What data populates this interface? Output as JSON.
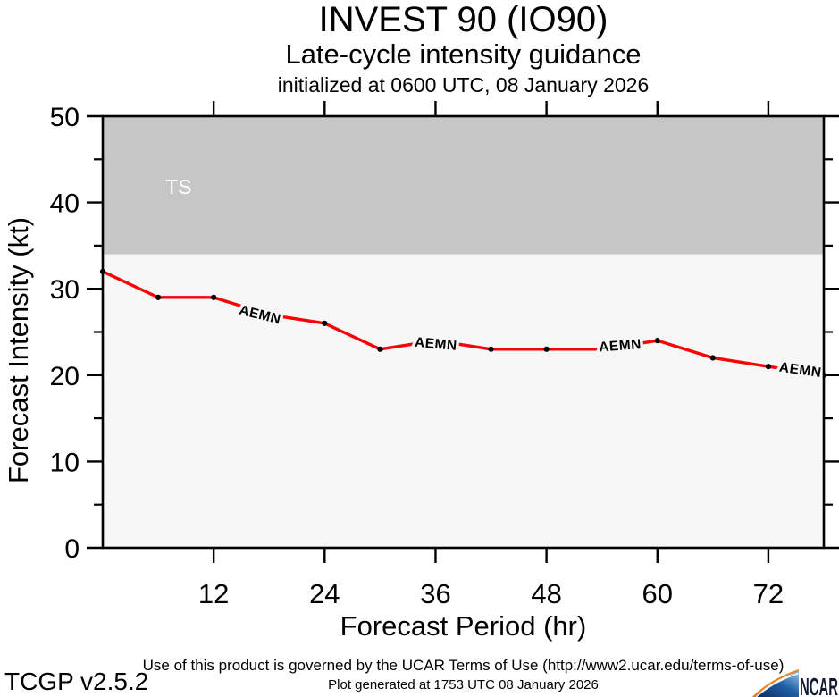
{
  "chart_data": {
    "type": "line",
    "title": "INVEST 90 (IO90)",
    "subtitle": "Late-cycle intensity guidance",
    "init_time": "initialized at 0600 UTC, 08 January 2026",
    "xlabel": "Forecast Period (hr)",
    "ylabel": "Forecast Intensity (kt)",
    "xlim": [
      0,
      78
    ],
    "ylim": [
      0,
      50
    ],
    "x_ticks": [
      12,
      24,
      36,
      48,
      60,
      72
    ],
    "y_ticks_major": [
      0,
      10,
      20,
      30,
      40,
      50
    ],
    "y_ticks_minor": [
      5,
      15,
      25,
      35,
      45
    ],
    "grid": false,
    "legend": "none",
    "plot_bg_color": "#f7f7f7",
    "series": [
      {
        "name": "AEMN",
        "color": "#f50505",
        "marker_color": "#000000",
        "x": [
          0,
          6,
          12,
          18,
          24,
          30,
          36,
          42,
          48,
          54,
          60,
          66,
          72,
          78
        ],
        "values": [
          32,
          29,
          29,
          27,
          26,
          23,
          24,
          23,
          23,
          23,
          24,
          22,
          21,
          20
        ]
      }
    ],
    "line_labels": [
      {
        "text": "AEMN",
        "x_hr": 16.9,
        "y_kt": 26.5,
        "rot": 14
      },
      {
        "text": "AEMN",
        "x_hr": 36.0,
        "y_kt": 23.1,
        "rot": 5
      },
      {
        "text": "AEMN",
        "x_hr": 56.0,
        "y_kt": 22.9,
        "rot": -4
      },
      {
        "text": "AEMN",
        "x_hr": 75.4,
        "y_kt": 20.1,
        "rot": 8
      }
    ],
    "threshold_band": {
      "label": "TS",
      "from_kt": 34,
      "to_kt": 50,
      "color": "#c6c6c6",
      "label_color": "#ffffff",
      "label_x_hr": 8.2,
      "label_y_kt": 41.0
    }
  },
  "footer": {
    "terms": "Use of this product is governed by the UCAR Terms of Use (http://www2.ucar.edu/terms-of-use)",
    "version": "TCGP v2.5.2",
    "generated": "Plot generated at 1753 UTC  08 January 2026",
    "logo_text": "NCAR"
  }
}
